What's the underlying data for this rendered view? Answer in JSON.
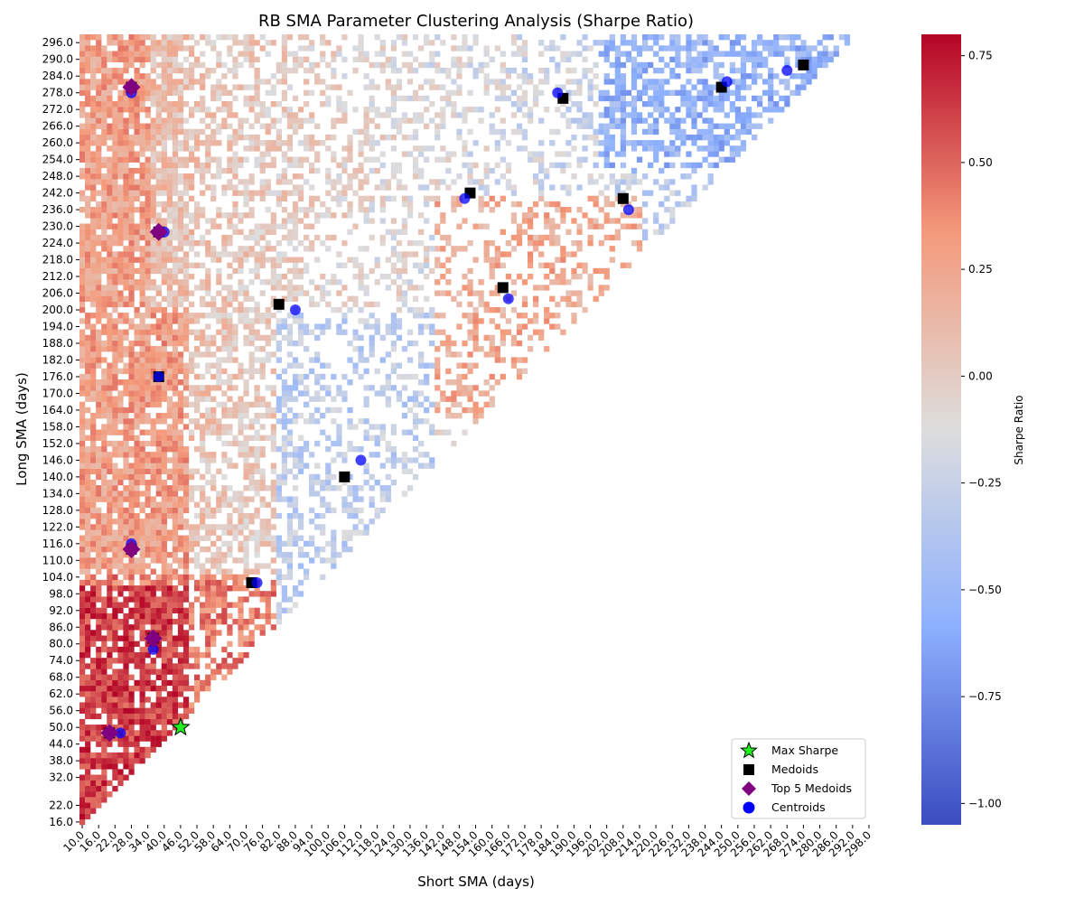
{
  "chart_data": {
    "type": "heatmap",
    "title": "RB SMA Parameter Clustering Analysis (Sharpe Ratio)",
    "xlabel": "Short SMA (days)",
    "ylabel": "Long SMA (days)",
    "x_range": [
      10,
      298
    ],
    "y_range": [
      16,
      298
    ],
    "x_step": 2,
    "y_step": 2,
    "x_ticks": [
      10,
      16,
      22,
      28,
      34,
      40,
      46,
      52,
      58,
      64,
      70,
      76,
      82,
      88,
      94,
      100,
      106,
      112,
      118,
      124,
      130,
      136,
      142,
      148,
      154,
      160,
      166,
      172,
      178,
      184,
      190,
      196,
      202,
      208,
      214,
      220,
      226,
      232,
      238,
      244,
      250,
      256,
      262,
      268,
      274,
      280,
      286,
      292,
      298
    ],
    "y_ticks": [
      16,
      22,
      32,
      38,
      44,
      50,
      56,
      62,
      68,
      74,
      80,
      86,
      92,
      98,
      104,
      110,
      116,
      122,
      128,
      134,
      140,
      146,
      152,
      158,
      164,
      170,
      176,
      182,
      188,
      194,
      200,
      206,
      212,
      218,
      224,
      230,
      236,
      242,
      248,
      254,
      260,
      266,
      272,
      278,
      284,
      290,
      296
    ],
    "colorbar": {
      "label": "Sharpe Ratio",
      "min": -1.05,
      "max": 0.8,
      "ticks": [
        0.75,
        0.5,
        0.25,
        0.0,
        -0.25,
        -0.5,
        -0.75,
        -1.0
      ],
      "tick_labels": [
        "0.75",
        "0.50",
        "0.25",
        "0.00",
        "−0.25",
        "−0.50",
        "−0.75",
        "−1.00"
      ],
      "colormap": "coolwarm"
    },
    "sharpe_regions": [
      {
        "short_max": 48,
        "long_max": 100,
        "sharpe": 0.62
      },
      {
        "short_max": 80,
        "long_max": 104,
        "sharpe": 0.42
      },
      {
        "short_max": 34,
        "long_max": 300,
        "sharpe": 0.28
      },
      {
        "short_max": 48,
        "long_max": 200,
        "sharpe": 0.3
      },
      {
        "short_min": 140,
        "short_max": 215,
        "long_min": 160,
        "long_max": 240,
        "sharpe": 0.22
      },
      {
        "short_min": 200,
        "long_min": 250,
        "sharpe": -0.55
      },
      {
        "short_min": 250,
        "long_min": 256,
        "sharpe": -0.75
      }
    ],
    "max_sharpe": {
      "x": 46,
      "y": 50
    },
    "medoids": [
      {
        "x": 28,
        "y": 280
      },
      {
        "x": 38,
        "y": 228
      },
      {
        "x": 38,
        "y": 176
      },
      {
        "x": 28,
        "y": 114
      },
      {
        "x": 36,
        "y": 82
      },
      {
        "x": 20,
        "y": 48
      },
      {
        "x": 72,
        "y": 102
      },
      {
        "x": 82,
        "y": 202
      },
      {
        "x": 106,
        "y": 140
      },
      {
        "x": 152,
        "y": 242
      },
      {
        "x": 164,
        "y": 208
      },
      {
        "x": 186,
        "y": 276
      },
      {
        "x": 208,
        "y": 240
      },
      {
        "x": 244,
        "y": 280
      },
      {
        "x": 274,
        "y": 288
      }
    ],
    "top5_medoids": [
      {
        "x": 28,
        "y": 280
      },
      {
        "x": 38,
        "y": 228
      },
      {
        "x": 28,
        "y": 114
      },
      {
        "x": 36,
        "y": 82
      },
      {
        "x": 20,
        "y": 48
      }
    ],
    "centroids": [
      {
        "x": 28,
        "y": 278
      },
      {
        "x": 40,
        "y": 228
      },
      {
        "x": 38,
        "y": 176
      },
      {
        "x": 28,
        "y": 116
      },
      {
        "x": 36,
        "y": 78
      },
      {
        "x": 24,
        "y": 48
      },
      {
        "x": 74,
        "y": 102
      },
      {
        "x": 88,
        "y": 200
      },
      {
        "x": 112,
        "y": 146
      },
      {
        "x": 150,
        "y": 240
      },
      {
        "x": 166,
        "y": 204
      },
      {
        "x": 184,
        "y": 278
      },
      {
        "x": 210,
        "y": 236
      },
      {
        "x": 246,
        "y": 282
      },
      {
        "x": 268,
        "y": 286
      }
    ],
    "legend": {
      "placement": "lower-right",
      "entries": [
        {
          "key": "max_sharpe",
          "label": "Max Sharpe"
        },
        {
          "key": "medoids",
          "label": "Medoids"
        },
        {
          "key": "top5",
          "label": "Top 5 Medoids"
        },
        {
          "key": "centroids",
          "label": "Centroids"
        }
      ]
    },
    "marker_colors": {
      "max_sharpe": "#22ee22",
      "medoids": "#000000",
      "top5": "#800080",
      "centroids": "#0000ff"
    }
  }
}
